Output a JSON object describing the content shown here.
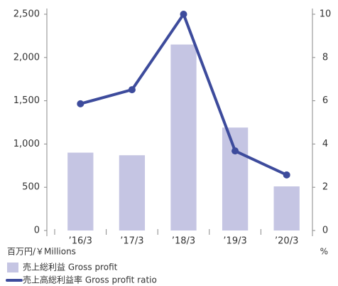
{
  "chart_data": {
    "type": "bar",
    "categories": [
      "’16/3",
      "’17/3",
      "’18/3",
      "’19/3",
      "’20/3"
    ],
    "series": [
      {
        "name": "売上総利益 Gross profit",
        "type": "bar",
        "color": "#c5c5e3",
        "values": [
          900,
          870,
          2150,
          1190,
          510
        ]
      },
      {
        "name": "売上高総利益率 Gross profit ratio",
        "type": "line",
        "axis": "y2",
        "color": "#3d4b9c",
        "values": [
          5.86,
          6.51,
          10.0,
          3.68,
          2.57
        ]
      }
    ],
    "ylim": [
      0,
      2500
    ],
    "yticks": [
      0,
      500,
      {
        "value": 1000,
        "label": "1,000"
      },
      {
        "value": 1500,
        "label": "1,500"
      },
      {
        "value": 2000,
        "label": "2,000"
      },
      {
        "value": 2500,
        "label": "2,500"
      }
    ],
    "y2lim": [
      0,
      10
    ],
    "y2ticks": [
      0,
      2,
      4,
      6,
      8,
      10
    ],
    "ylabel": "百万円/￥Millions",
    "y2label": "%"
  }
}
